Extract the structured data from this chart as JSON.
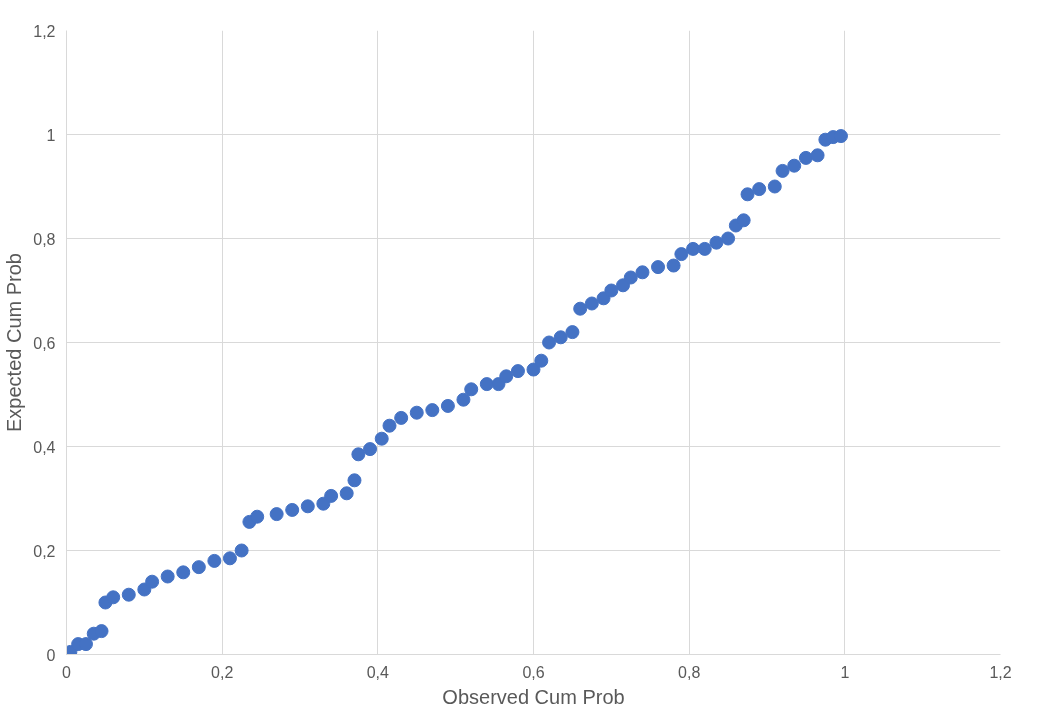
{
  "chart_data": {
    "type": "scatter",
    "xlabel": "Observed Cum Prob",
    "ylabel": "Expected Cum Prob",
    "x": [
      0.005,
      0.015,
      0.025,
      0.035,
      0.045,
      0.05,
      0.06,
      0.08,
      0.1,
      0.11,
      0.13,
      0.15,
      0.17,
      0.19,
      0.21,
      0.225,
      0.235,
      0.245,
      0.27,
      0.29,
      0.31,
      0.33,
      0.34,
      0.36,
      0.37,
      0.375,
      0.39,
      0.405,
      0.415,
      0.43,
      0.45,
      0.47,
      0.49,
      0.51,
      0.52,
      0.54,
      0.555,
      0.565,
      0.58,
      0.6,
      0.61,
      0.62,
      0.635,
      0.65,
      0.66,
      0.675,
      0.69,
      0.7,
      0.715,
      0.725,
      0.74,
      0.76,
      0.78,
      0.79,
      0.805,
      0.82,
      0.835,
      0.85,
      0.86,
      0.87,
      0.875,
      0.89,
      0.91,
      0.92,
      0.935,
      0.95,
      0.965,
      0.975,
      0.985,
      0.995
    ],
    "series": [
      {
        "color": "#4472c4",
        "values": [
          0.005,
          0.02,
          0.02,
          0.04,
          0.045,
          0.1,
          0.11,
          0.115,
          0.125,
          0.14,
          0.15,
          0.158,
          0.168,
          0.18,
          0.185,
          0.2,
          0.255,
          0.265,
          0.27,
          0.278,
          0.285,
          0.29,
          0.305,
          0.31,
          0.335,
          0.385,
          0.395,
          0.415,
          0.44,
          0.455,
          0.465,
          0.47,
          0.478,
          0.49,
          0.51,
          0.52,
          0.52,
          0.535,
          0.545,
          0.548,
          0.565,
          0.6,
          0.61,
          0.62,
          0.665,
          0.675,
          0.685,
          0.7,
          0.71,
          0.725,
          0.735,
          0.745,
          0.748,
          0.77,
          0.78,
          0.78,
          0.792,
          0.8,
          0.825,
          0.835,
          0.885,
          0.895,
          0.9,
          0.93,
          0.94,
          0.955,
          0.96,
          0.99,
          0.995,
          0.997
        ]
      }
    ],
    "xlim": [
      0,
      1.2
    ],
    "ylim": [
      0,
      1.2
    ],
    "xticks": [
      0,
      {
        "value": 0.2,
        "label": "0,2"
      },
      {
        "value": 0.4,
        "label": "0,4"
      },
      {
        "value": 0.6,
        "label": "0,6"
      },
      {
        "value": 0.8,
        "label": "0,8"
      },
      1,
      {
        "value": 1.2,
        "label": "1,2"
      }
    ],
    "yticks": [
      0,
      {
        "value": 0.2,
        "label": "0,2"
      },
      {
        "value": 0.4,
        "label": "0,4"
      },
      {
        "value": 0.6,
        "label": "0,6"
      },
      {
        "value": 0.8,
        "label": "0,8"
      },
      1,
      {
        "value": 1.2,
        "label": "1,2"
      }
    ],
    "grid": true,
    "marker": "circle"
  }
}
